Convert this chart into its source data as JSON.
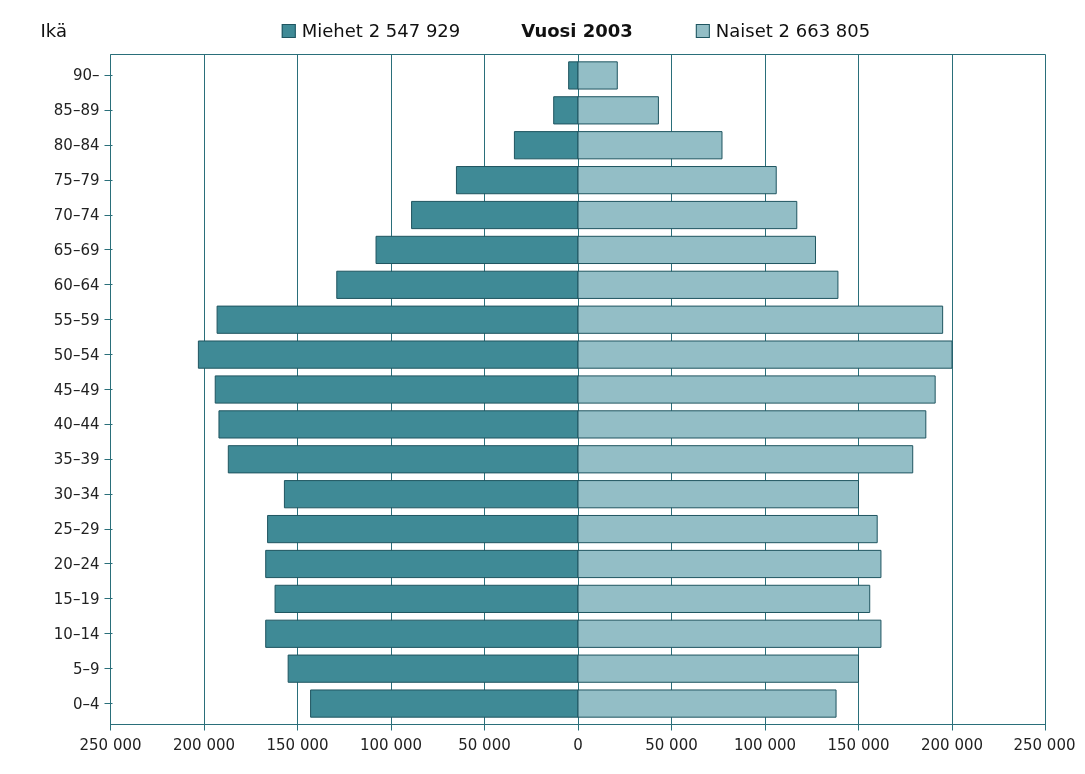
{
  "chart_data": {
    "type": "bar",
    "orientation": "horizontal",
    "title": "Vuosi 2003",
    "ylabel": "Ikä",
    "categories": [
      "90–",
      "85–89",
      "80–84",
      "75–79",
      "70–74",
      "65–69",
      "60–64",
      "55–59",
      "50–54",
      "45–49",
      "40–44",
      "35–39",
      "30–34",
      "25–29",
      "20–24",
      "15–19",
      "10–14",
      "5–9",
      "0–4"
    ],
    "series": [
      {
        "name": "Miehet   2 547 929",
        "color": "#3f8a96",
        "values": [
          -5000,
          -13000,
          -34000,
          -65000,
          -89000,
          -108000,
          -129000,
          -193000,
          -203000,
          -194000,
          -192000,
          -187000,
          -157000,
          -166000,
          -167000,
          -162000,
          -167000,
          -155000,
          -143000
        ]
      },
      {
        "name": "Naiset   2 663 805",
        "color": "#93bec6",
        "values": [
          21000,
          43000,
          77000,
          106000,
          117000,
          127000,
          139000,
          195000,
          200000,
          191000,
          186000,
          179000,
          150000,
          160000,
          162000,
          156000,
          162000,
          150000,
          138000
        ]
      }
    ],
    "xlim": [
      -250000,
      250000
    ],
    "xticks": [
      {
        "value": -250000,
        "label": "250 000"
      },
      {
        "value": -200000,
        "label": "200 000"
      },
      {
        "value": -150000,
        "label": "150 000"
      },
      {
        "value": -100000,
        "label": "100 000"
      },
      {
        "value": -50000,
        "label": "50 000"
      },
      0,
      {
        "value": 50000,
        "label": "50 000"
      },
      {
        "value": 100000,
        "label": "100 000"
      },
      {
        "value": 150000,
        "label": "150 000"
      },
      {
        "value": 200000,
        "label": "200 000"
      },
      {
        "value": 250000,
        "label": "250 000"
      }
    ],
    "grid": "x",
    "stacked": true,
    "legend": "top"
  }
}
